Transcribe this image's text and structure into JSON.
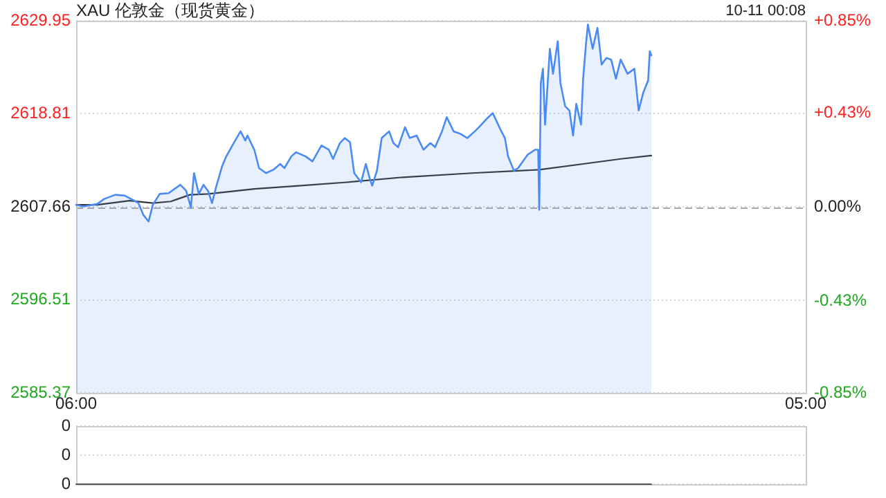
{
  "chart_data": [
    {
      "type": "line",
      "title": "XAU 伦敦金（现货黄金）",
      "annotations": [
        "10-11 00:08"
      ],
      "xlim": [
        "--10-10T06:00",
        "--10-11T05:00"
      ],
      "xticks": [
        {
          "value": "--10-10T06:00",
          "label": "06:00"
        },
        {
          "value": "--10-11T05:00",
          "label": "05:00"
        }
      ],
      "ylim": [
        2585.37,
        2629.95
      ],
      "yticks": [
        2585.37,
        2596.51,
        2607.66,
        2618.81,
        2629.95
      ],
      "y2lim": [
        -0.85,
        0.85
      ],
      "y2ticks": [
        {
          "value": -0.85,
          "label": "-0.85%"
        },
        {
          "value": -0.43,
          "label": "-0.43%"
        },
        {
          "value": 0,
          "label": "0.00%"
        },
        {
          "value": 0.43,
          "label": "+0.43%"
        },
        {
          "value": 0.85,
          "label": "+0.85%"
        }
      ],
      "grid": "y",
      "legend": false,
      "ref_lines": [
        {
          "axis": "y",
          "value": 2607.66,
          "color": "#aaaaaa",
          "line_style": "dashed"
        }
      ],
      "series": [
        {
          "type": "area",
          "color": "#4a8af4",
          "x": [
            "--10-10T06:00",
            "--10-10T06:13",
            "--10-10T06:40",
            "--10-10T06:53",
            "--10-10T07:14",
            "--10-10T07:32",
            "--10-10T07:50",
            "--10-10T07:58",
            "--10-10T08:07",
            "--10-10T08:17",
            "--10-10T08:25",
            "--10-10T08:38",
            "--10-10T08:55",
            "--10-10T09:17",
            "--10-10T09:28",
            "--10-10T09:37",
            "--10-10T09:43",
            "--10-10T09:52",
            "--10-10T10:01",
            "--10-10T10:10",
            "--10-10T10:17",
            "--10-10T10:25",
            "--10-10T10:36",
            "--10-10T10:44",
            "--10-10T10:58",
            "--10-10T11:11",
            "--10-10T11:20",
            "--10-10T11:24",
            "--10-10T11:37",
            "--10-10T11:46",
            "--10-10T11:59",
            "--10-10T12:13",
            "--10-10T12:26",
            "--10-10T12:34",
            "--10-10T12:47",
            "--10-10T12:56",
            "--10-10T13:14",
            "--10-10T13:27",
            "--10-10T13:44",
            "--10-10T13:58",
            "--10-10T14:06",
            "--10-10T14:19",
            "--10-10T14:28",
            "--10-10T14:38",
            "--10-10T14:46",
            "--10-10T14:59",
            "--10-10T15:08",
            "--10-10T15:16",
            "--10-10T15:20",
            "--10-10T15:29",
            "--10-10T15:38",
            "--10-10T15:52",
            "--10-10T16:00",
            "--10-10T16:09",
            "--10-10T16:22",
            "--10-10T16:31",
            "--10-10T16:44",
            "--10-10T16:57",
            "--10-10T17:10",
            "--10-10T17:19",
            "--10-10T17:32",
            "--10-10T17:41",
            "--10-10T17:54",
            "--10-10T18:07",
            "--10-10T18:20",
            "--10-10T18:34",
            "--10-10T18:42",
            "--10-10T18:55",
            "--10-10T19:08",
            "--10-10T19:22",
            "--10-10T19:31",
            "--10-10T19:37",
            "--10-10T19:48",
            "--10-10T19:56",
            "--10-10T20:05",
            "--10-10T20:14",
            "--10-10T20:28",
            "--10-10T20:34",
            "--10-10T20:36",
            "--10-10T20:39",
            "--10-10T20:43",
            "--10-10T20:47",
            "--10-10T20:56",
            "--10-10T21:02",
            "--10-10T21:11",
            "--10-10T21:16",
            "--10-10T21:25",
            "--10-10T21:33",
            "--10-10T21:40",
            "--10-10T21:46",
            "--10-10T21:55",
            "--10-10T21:59",
            "--10-10T22:04",
            "--10-10T22:08",
            "--10-10T22:17",
            "--10-10T22:26",
            "--10-10T22:34",
            "--10-10T22:43",
            "--10-10T22:52",
            "--10-10T23:01",
            "--10-10T23:10",
            "--10-10T23:23",
            "--10-10T23:36",
            "--10-10T23:44",
            "--10-10T23:53",
            "--10-11T00:02",
            "--10-11T00:05",
            "--10-11T00:08"
          ],
          "values": [
            2607.9,
            2607.7,
            2608.0,
            2608.6,
            2609.1,
            2609.0,
            2608.4,
            2608.1,
            2606.7,
            2605.9,
            2607.9,
            2609.2,
            2609.3,
            2610.3,
            2609.6,
            2607.6,
            2611.7,
            2609.2,
            2610.3,
            2609.5,
            2608.1,
            2610.1,
            2612.5,
            2613.7,
            2615.3,
            2616.7,
            2615.6,
            2616.2,
            2614.5,
            2612.3,
            2611.7,
            2612.1,
            2612.8,
            2612.3,
            2613.7,
            2614.2,
            2613.7,
            2613.1,
            2615.0,
            2614.5,
            2613.4,
            2615.3,
            2615.9,
            2615.4,
            2611.7,
            2610.6,
            2612.8,
            2610.9,
            2610.2,
            2612.0,
            2615.9,
            2616.7,
            2615.3,
            2614.8,
            2617.2,
            2615.9,
            2616.2,
            2614.5,
            2615.3,
            2614.8,
            2616.7,
            2618.4,
            2616.7,
            2616.4,
            2615.9,
            2616.7,
            2617.2,
            2618.1,
            2618.9,
            2617.0,
            2615.9,
            2613.7,
            2612.0,
            2612.3,
            2613.1,
            2613.9,
            2614.5,
            2614.5,
            2607.3,
            2622.5,
            2624.2,
            2617.5,
            2626.6,
            2623.6,
            2627.5,
            2622.5,
            2619.7,
            2619.2,
            2616.2,
            2620.0,
            2617.5,
            2623.0,
            2626.9,
            2629.5,
            2626.6,
            2629.1,
            2624.7,
            2625.5,
            2625.3,
            2623.0,
            2625.3,
            2623.6,
            2624.2,
            2619.2,
            2621.4,
            2622.8,
            2626.3,
            2625.8
          ]
        },
        {
          "type": "line",
          "color": "#333333",
          "x": [
            "--10-10T06:00",
            "--10-10T06:40",
            "--10-10T07:41",
            "--10-10T08:25",
            "--10-10T08:59",
            "--10-10T09:35",
            "--10-10T10:10",
            "--10-10T11:37",
            "--10-10T13:05",
            "--10-10T14:32",
            "--10-10T16:18",
            "--10-10T18:29",
            "--10-10T20:36",
            "--10-10T21:59",
            "--10-10T23:10",
            "--10-11T00:08"
          ],
          "values": [
            2607.9,
            2607.9,
            2608.4,
            2608.1,
            2608.3,
            2609.1,
            2609.2,
            2609.8,
            2610.2,
            2610.6,
            2611.2,
            2611.7,
            2612.1,
            2612.8,
            2613.4,
            2613.8
          ]
        }
      ]
    },
    {
      "type": "line",
      "tick_labels": "y",
      "xlim": [
        "--10-10T06:00",
        "--10-11T05:00"
      ],
      "ylim": [
        0,
        0.4
      ],
      "yticks": [
        0,
        {
          "value": 0.2,
          "label": "0"
        },
        {
          "value": 0.4,
          "label": "0"
        }
      ],
      "grid": "y",
      "legend": false,
      "series": [
        {
          "type": "line",
          "color": "#555555",
          "x": [
            "--10-10T06:00",
            "--10-11T00:08"
          ],
          "values": [
            0,
            0
          ]
        }
      ]
    }
  ]
}
